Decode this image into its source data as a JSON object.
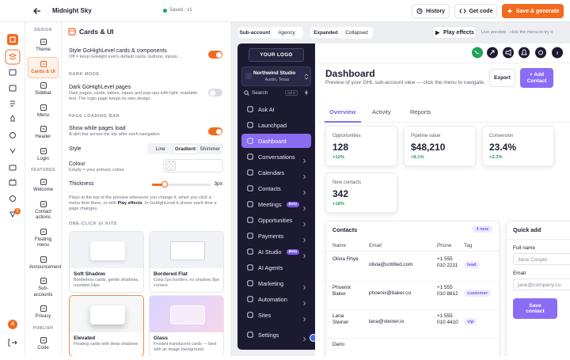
{
  "topbar": {
    "title": "Midnight Sky",
    "status": "Saved · v1",
    "history": "History",
    "get_code": "Get code",
    "save": "Save & generate"
  },
  "rail": {
    "badge": "1",
    "avatar": "A"
  },
  "nav": [
    {
      "section": "DESIGN",
      "items": [
        {
          "label": "Theme"
        },
        {
          "label": "Cards & UI",
          "active": true
        },
        {
          "label": "Sidebar"
        },
        {
          "label": "Menu"
        },
        {
          "label": "Header"
        },
        {
          "label": "Login"
        }
      ]
    },
    {
      "section": "FEATURES",
      "items": [
        {
          "label": "Welcome"
        },
        {
          "label": "Contact actions"
        },
        {
          "label": "Floating menu"
        },
        {
          "label": "Announcements"
        },
        {
          "label": "Sub-accounts"
        },
        {
          "label": "Privacy"
        }
      ]
    },
    {
      "section": "PUBLISH",
      "items": [
        {
          "label": "Code"
        }
      ]
    }
  ],
  "settings": {
    "title": "Cards & UI",
    "style_cards": {
      "label": "Style GoHighLevel cards & components",
      "hint": "Off = keep GoHighLevel's default cards, buttons, inputs...",
      "on": true
    },
    "dark_heading": "DARK MODE",
    "dark": {
      "label": "Dark GoHighLevel pages",
      "hint": "Dark pages, cards, tables, inputs and pop-ups with light, readable text. The login page keeps its own design.",
      "on": false
    },
    "loading_heading": "PAGE LOADING BAR",
    "loading": {
      "label": "Show while pages load",
      "hint": "A slim bar across the top after each navigation",
      "on": true
    },
    "style": {
      "label": "Style",
      "options": [
        "Line",
        "Gradient",
        "Shimmer"
      ],
      "selected": 1
    },
    "colour": {
      "label": "Colour",
      "hint": "Empty = your primary colour"
    },
    "thickness": {
      "label": "Thickness",
      "value": "3px"
    },
    "note": [
      "Plays at the top of the preview whenever you change it, when you click a menu item there, or with ",
      "Play effects",
      ". In GoHighLevel it shows each time a page changes."
    ],
    "kits_heading": "ONE-CLICK UI KITS",
    "kits": [
      {
        "name": "Soft Shadow",
        "desc": "Borderless cards, gentle shadows, rounded 14px"
      },
      {
        "name": "Bordered Flat",
        "desc": "Crisp 1px borders, no shadow, 8px corners"
      },
      {
        "name": "Elevated",
        "desc": "Floating cards with deep shadows",
        "selected": true
      },
      {
        "name": "Glass",
        "desc": "Frosted translucent cards — best with an image background"
      }
    ]
  },
  "preview": {
    "modes": [
      "Sub-account",
      "Agency"
    ],
    "mode_selected": 0,
    "layouts": [
      "Expanded",
      "Collapsed"
    ],
    "layout_selected": 0,
    "play": "Play effects",
    "hint": "Live preview · click the menu to try it",
    "logo": "YOUR LOGO",
    "account": {
      "name": "Northwind Studio",
      "location": "Austin, Texas"
    },
    "search": {
      "placeholder": "Search",
      "shortcut": "ctrl K"
    },
    "menu": [
      {
        "label": "Ask AI"
      },
      {
        "label": "Launchpad"
      },
      {
        "label": "Dashboard",
        "active": true
      },
      {
        "label": "Conversations",
        "chevron": true
      },
      {
        "label": "Calendars",
        "chevron": true
      },
      {
        "label": "Contacts",
        "chevron": true
      },
      {
        "label": "Meetings",
        "badge": "Beta",
        "chevron": true
      },
      {
        "label": "Opportunities",
        "chevron": true
      },
      {
        "label": "Payments",
        "chevron": true
      },
      {
        "label": "AI Studio",
        "badge": "Beta",
        "chevron": true
      },
      {
        "label": "AI Agents"
      },
      {
        "label": "Marketing",
        "chevron": true
      },
      {
        "label": "Automation",
        "chevron": true
      },
      {
        "label": "Sites",
        "chevron": true
      },
      {
        "label": "Settings",
        "chevron": true
      }
    ],
    "page": {
      "title": "Dashboard",
      "subtitle": "Preview of your GHL sub-account view — click the menu to navigate.",
      "export": "Export",
      "add": "+ Add Contact"
    },
    "tabs": [
      "Overview",
      "Activity",
      "Reports"
    ],
    "tab_selected": 0,
    "stats": [
      {
        "label": "Opportunities",
        "value": "128",
        "change": "+12%"
      },
      {
        "label": "Pipeline value",
        "value": "$48,210",
        "change": "+8.1%"
      },
      {
        "label": "Conversion",
        "value": "23.4%",
        "change": "+2.3%"
      },
      {
        "label": "New contacts",
        "value": "342",
        "change": "+18%"
      }
    ],
    "contacts": {
      "title": "Contacts",
      "badge": "4 new",
      "columns": [
        "Name",
        "Email",
        "Phone",
        "Tag"
      ],
      "rows": [
        {
          "name": "Olivia Rhye",
          "email": "olivia@untitled.com",
          "phone": "+1 555 010 2211",
          "tag": "lead"
        },
        {
          "name": "Phoenix Baker",
          "email": "phoenix@baker.co",
          "phone": "+1 555 010 8812",
          "tag": "customer"
        },
        {
          "name": "Lana Steiner",
          "email": "lana@steiner.io",
          "phone": "+1 555 010 4410",
          "tag": "vip"
        },
        {
          "name": "Demi"
        }
      ]
    },
    "quick_add": {
      "title": "Quick add",
      "fields": [
        {
          "label": "Full name",
          "placeholder": "Jane Cooper"
        },
        {
          "label": "Email",
          "placeholder": "jane@company.co"
        }
      ],
      "submit": "Save contact"
    }
  }
}
